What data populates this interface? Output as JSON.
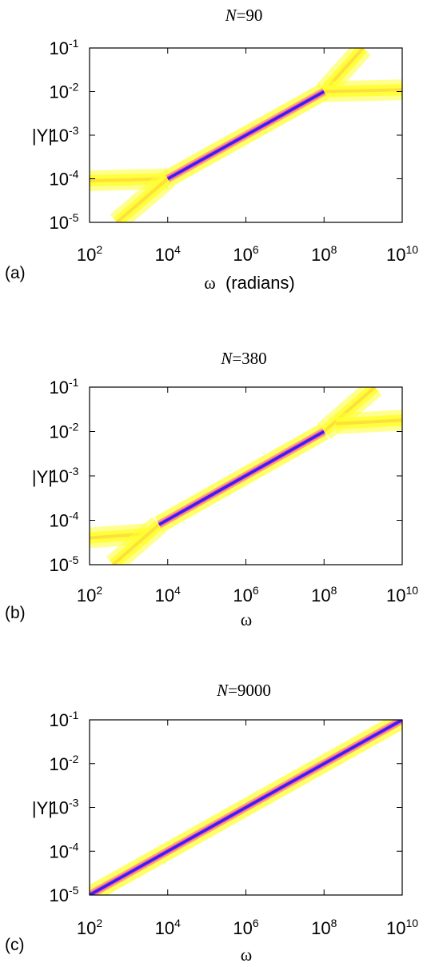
{
  "chart_data": [
    {
      "type": "heatmap",
      "panel_label": "(a)",
      "title_var": "N",
      "title_val": "=90",
      "xlabel_sym": "ω",
      "xlabel_unit": "  (radians)",
      "ylabel": "|Y|",
      "xscale": "log",
      "yscale": "log",
      "xlim": [
        100,
        10000000000
      ],
      "ylim": [
        1e-05,
        0.1
      ],
      "x_ticks": [
        {
          "base": "10",
          "exp": "2"
        },
        {
          "base": "10",
          "exp": "4"
        },
        {
          "base": "10",
          "exp": "6"
        },
        {
          "base": "10",
          "exp": "8"
        },
        {
          "base": "10",
          "exp": "10"
        }
      ],
      "y_ticks": [
        {
          "base": "10",
          "exp": "-5"
        },
        {
          "base": "10",
          "exp": "-4"
        },
        {
          "base": "10",
          "exp": "-3"
        },
        {
          "base": "10",
          "exp": "-2"
        },
        {
          "base": "10",
          "exp": "-1"
        }
      ],
      "branches": [
        {
          "name": "diagonal",
          "from": [
            10000,
            0.0001
          ],
          "to": [
            100000000,
            0.01
          ],
          "density": "high"
        },
        {
          "name": "low-plateau",
          "from": [
            100,
            9e-05
          ],
          "to": [
            10000,
            0.0001
          ],
          "density": "low"
        },
        {
          "name": "low-tail",
          "from": [
            500,
            1e-05
          ],
          "to": [
            10000,
            0.0001
          ],
          "density": "low"
        },
        {
          "name": "high-rise",
          "from": [
            100000000,
            0.01
          ],
          "to": [
            1000000000,
            0.1
          ],
          "density": "low"
        },
        {
          "name": "high-plateau",
          "from": [
            100000000,
            0.01
          ],
          "to": [
            10000000000,
            0.011
          ],
          "density": "low"
        }
      ]
    },
    {
      "type": "heatmap",
      "panel_label": "(b)",
      "title_var": "N",
      "title_val": "=380",
      "xlabel_sym": "ω",
      "xlabel_unit": "",
      "ylabel": "|Y|",
      "xscale": "log",
      "yscale": "log",
      "xlim": [
        100,
        10000000000
      ],
      "ylim": [
        1e-05,
        0.1
      ],
      "x_ticks": [
        {
          "base": "10",
          "exp": "2"
        },
        {
          "base": "10",
          "exp": "4"
        },
        {
          "base": "10",
          "exp": "6"
        },
        {
          "base": "10",
          "exp": "8"
        },
        {
          "base": "10",
          "exp": "10"
        }
      ],
      "y_ticks": [
        {
          "base": "10",
          "exp": "-5"
        },
        {
          "base": "10",
          "exp": "-4"
        },
        {
          "base": "10",
          "exp": "-3"
        },
        {
          "base": "10",
          "exp": "-2"
        },
        {
          "base": "10",
          "exp": "-1"
        }
      ],
      "branches": [
        {
          "name": "diagonal",
          "from": [
            6000,
            8e-05
          ],
          "to": [
            100000000,
            0.01
          ],
          "density": "high"
        },
        {
          "name": "low-plateau",
          "from": [
            100,
            4e-05
          ],
          "to": [
            3000,
            5e-05
          ],
          "density": "low"
        },
        {
          "name": "low-tail",
          "from": [
            400,
            1e-05
          ],
          "to": [
            6000,
            8e-05
          ],
          "density": "low"
        },
        {
          "name": "high-rise",
          "from": [
            100000000,
            0.01
          ],
          "to": [
            2000000000,
            0.1
          ],
          "density": "low"
        },
        {
          "name": "high-plateau",
          "from": [
            200000000,
            0.015
          ],
          "to": [
            10000000000,
            0.018
          ],
          "density": "low"
        }
      ]
    },
    {
      "type": "heatmap",
      "panel_label": "(c)",
      "title_var": "N",
      "title_val": "=9000",
      "xlabel_sym": "ω",
      "xlabel_unit": "",
      "ylabel": "|Y|",
      "xscale": "log",
      "yscale": "log",
      "xlim": [
        100,
        10000000000
      ],
      "ylim": [
        1e-05,
        0.1
      ],
      "x_ticks": [
        {
          "base": "10",
          "exp": "2"
        },
        {
          "base": "10",
          "exp": "4"
        },
        {
          "base": "10",
          "exp": "6"
        },
        {
          "base": "10",
          "exp": "8"
        },
        {
          "base": "10",
          "exp": "10"
        }
      ],
      "y_ticks": [
        {
          "base": "10",
          "exp": "-5"
        },
        {
          "base": "10",
          "exp": "-4"
        },
        {
          "base": "10",
          "exp": "-3"
        },
        {
          "base": "10",
          "exp": "-2"
        },
        {
          "base": "10",
          "exp": "-1"
        }
      ],
      "branches": [
        {
          "name": "diagonal",
          "from": [
            100,
            1e-05
          ],
          "to": [
            10000000000,
            0.1
          ],
          "density": "high"
        }
      ]
    }
  ],
  "colors": {
    "low_density": "#ffff33",
    "mid_density": "#ff9966",
    "high_density": "#ff44cc",
    "peak_density": "#3322ee"
  }
}
